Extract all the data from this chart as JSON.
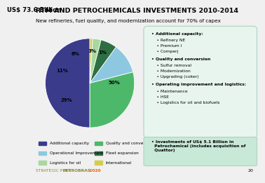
{
  "title": "RTM AND PETROCHEMICALS INVESTMENTS 2010-2014",
  "subtitle": "New refineries, fuel quality, and modernization account for 70% of capex",
  "chart_title": "US$ 73.6 Billion",
  "slices": [
    50,
    29,
    11,
    6,
    3,
    1
  ],
  "slice_labels": [
    "50%",
    "29%",
    "11%",
    "6%",
    "3%",
    "1%"
  ],
  "colors": [
    "#3b3b8c",
    "#4db86a",
    "#8dc8e0",
    "#2e6e42",
    "#a8d8a0",
    "#d4cc50"
  ],
  "legend_items": [
    {
      "label": "Additional capacity",
      "color": "#3b3b8c"
    },
    {
      "label": "Quality and conversion",
      "color": "#4db86a"
    },
    {
      "label": "Operational Improvement",
      "color": "#8dc8e0"
    },
    {
      "label": "Fleet expansion",
      "color": "#2e6e42"
    },
    {
      "label": "Logistics for oil",
      "color": "#a8d8a0"
    },
    {
      "label": "International",
      "color": "#d4cc50"
    }
  ],
  "petrochem_box": "• Investments of US$ 5.1 Billion in\n  Petrochemical (includes acquisition of\n  Quattor)",
  "footer_left": "STRATEGIC PLAN ",
  "footer_petrobras": "PETROBRAS",
  "footer_year": " 2020",
  "page_num": "20",
  "background_color": "#f0f0f0",
  "right_bg": "#e8f5ef",
  "right_border": "#b0d4c0",
  "petro_bg": "#c8e8d8",
  "startangle": 90,
  "label_fontsize": 5.0,
  "legend_fontsize": 4.2,
  "title_fontsize": 6.8,
  "subtitle_fontsize": 5.2
}
